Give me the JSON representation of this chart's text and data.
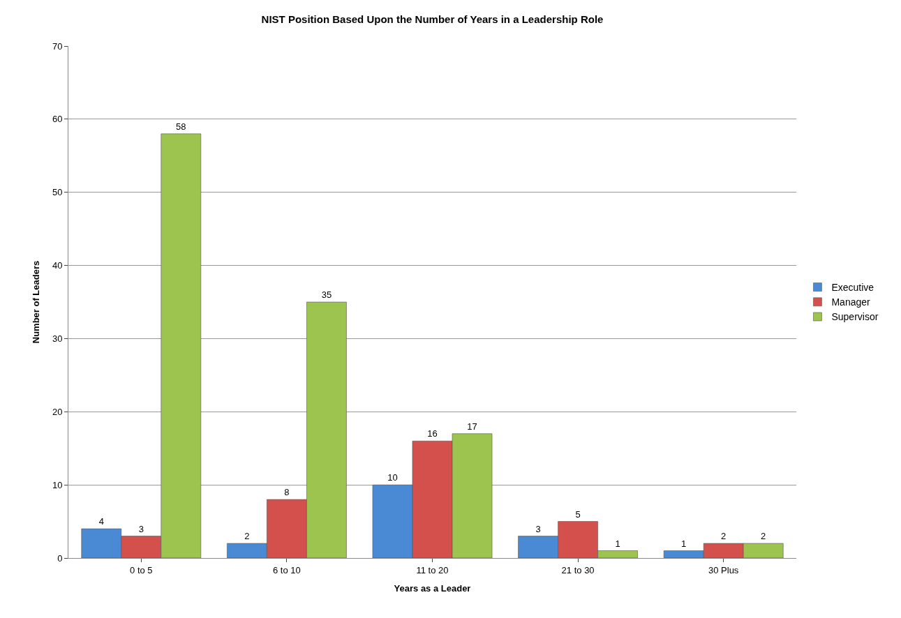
{
  "chart_data": {
    "type": "bar",
    "title": "NIST Position Based Upon the Number of Years in a Leadership Role",
    "xlabel": "Years as a Leader",
    "ylabel": "Number of Leaders",
    "categories": [
      "0 to 5",
      "6 to 10",
      "11 to 20",
      "21 to 30",
      "30 Plus"
    ],
    "series": [
      {
        "name": "Executive",
        "color": "#4a8ad4",
        "values": [
          4,
          2,
          10,
          3,
          1
        ]
      },
      {
        "name": "Manager",
        "color": "#d4504c",
        "values": [
          3,
          8,
          16,
          5,
          2
        ]
      },
      {
        "name": "Supervisor",
        "color": "#9cc44e",
        "values": [
          58,
          35,
          17,
          1,
          2
        ]
      }
    ],
    "ylim": [
      0,
      70
    ],
    "yticks": [
      0,
      10,
      20,
      30,
      40,
      50,
      60,
      70
    ],
    "grid": "y",
    "legend": "right",
    "data_labels": true
  }
}
